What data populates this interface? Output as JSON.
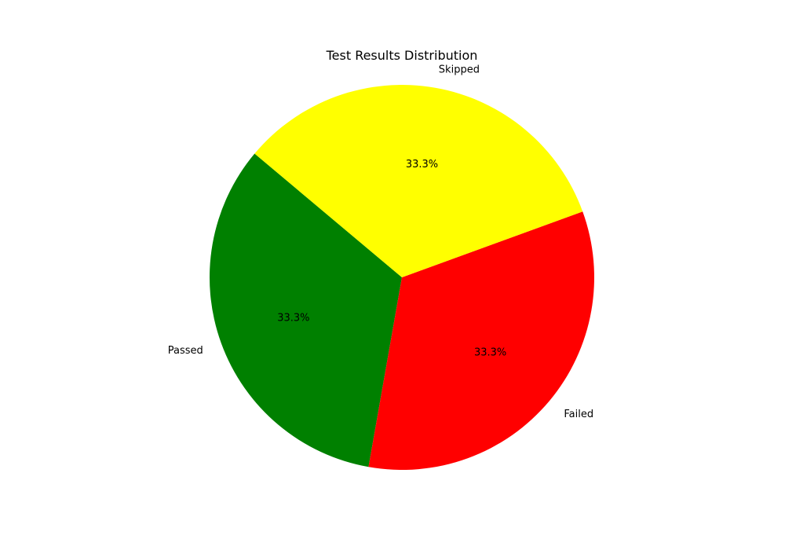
{
  "chart_data": {
    "type": "pie",
    "title": "Test Results Distribution",
    "slices": [
      {
        "label": "Passed",
        "value": 33.3,
        "pct_label": "33.3%",
        "color": "#008000"
      },
      {
        "label": "Failed",
        "value": 33.3,
        "pct_label": "33.3%",
        "color": "#ff0000"
      },
      {
        "label": "Skipped",
        "value": 33.3,
        "pct_label": "33.3%",
        "color": "#ffff00"
      }
    ],
    "start_angle_deg": 140,
    "direction": "counterclockwise",
    "legend": "none"
  }
}
